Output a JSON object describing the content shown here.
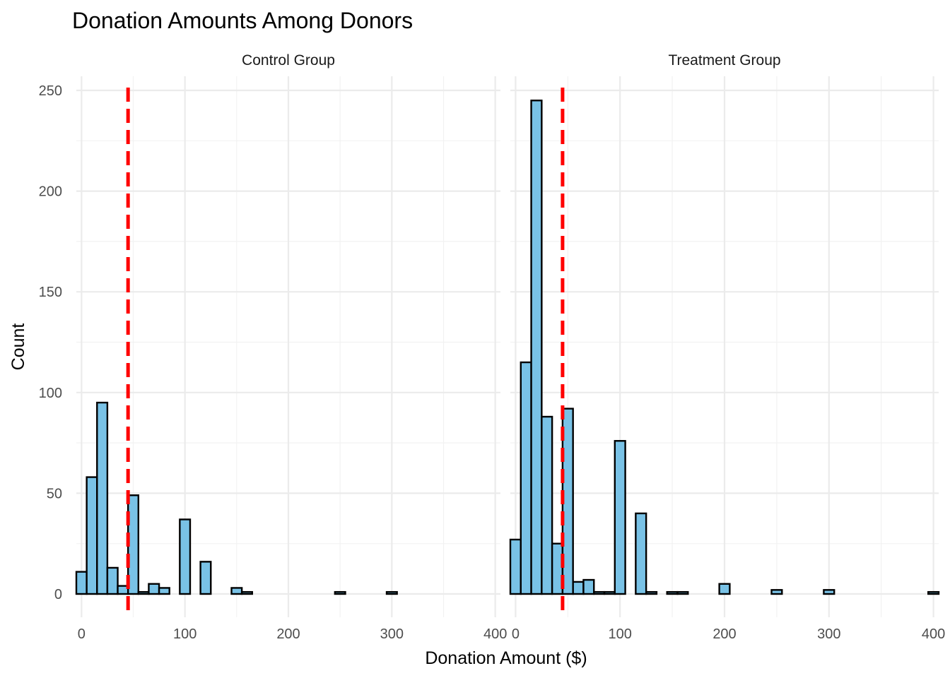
{
  "chart_data": {
    "type": "bar",
    "subtype": "histogram-faceted",
    "title": "Donation Amounts Among Donors",
    "xlabel": "Donation Amount ($)",
    "ylabel": "Count",
    "xlim": [
      -5,
      405
    ],
    "ylim": [
      0,
      250
    ],
    "x_ticks": [
      0,
      100,
      200,
      300,
      400
    ],
    "x_tick_labels": [
      "0",
      "100",
      "200",
      "300",
      "400"
    ],
    "y_ticks": [
      0,
      50,
      100,
      150,
      200,
      250
    ],
    "y_tick_labels": [
      "0",
      "50",
      "100",
      "150",
      "200",
      "250"
    ],
    "bin_width": 10,
    "bar_fill": "#79C2E6",
    "bar_outline": "#000000",
    "mean_line_color": "#FF0000",
    "grid": true,
    "facets": [
      {
        "label": "Control Group",
        "mean_line_x": 45,
        "bins": [
          {
            "x": 0,
            "count": 11
          },
          {
            "x": 10,
            "count": 58
          },
          {
            "x": 20,
            "count": 95
          },
          {
            "x": 30,
            "count": 13
          },
          {
            "x": 40,
            "count": 4
          },
          {
            "x": 50,
            "count": 49
          },
          {
            "x": 60,
            "count": 1
          },
          {
            "x": 70,
            "count": 5
          },
          {
            "x": 80,
            "count": 3
          },
          {
            "x": 90,
            "count": 0
          },
          {
            "x": 100,
            "count": 37
          },
          {
            "x": 110,
            "count": 0
          },
          {
            "x": 120,
            "count": 16
          },
          {
            "x": 130,
            "count": 0
          },
          {
            "x": 140,
            "count": 0
          },
          {
            "x": 150,
            "count": 3
          },
          {
            "x": 160,
            "count": 1
          },
          {
            "x": 170,
            "count": 0
          },
          {
            "x": 180,
            "count": 0
          },
          {
            "x": 190,
            "count": 0
          },
          {
            "x": 200,
            "count": 0
          },
          {
            "x": 210,
            "count": 0
          },
          {
            "x": 220,
            "count": 0
          },
          {
            "x": 230,
            "count": 0
          },
          {
            "x": 240,
            "count": 0
          },
          {
            "x": 250,
            "count": 1
          },
          {
            "x": 260,
            "count": 0
          },
          {
            "x": 270,
            "count": 0
          },
          {
            "x": 280,
            "count": 0
          },
          {
            "x": 290,
            "count": 0
          },
          {
            "x": 300,
            "count": 1
          },
          {
            "x": 310,
            "count": 0
          },
          {
            "x": 320,
            "count": 0
          },
          {
            "x": 330,
            "count": 0
          },
          {
            "x": 340,
            "count": 0
          },
          {
            "x": 350,
            "count": 0
          },
          {
            "x": 360,
            "count": 0
          },
          {
            "x": 370,
            "count": 0
          },
          {
            "x": 380,
            "count": 0
          },
          {
            "x": 390,
            "count": 0
          },
          {
            "x": 400,
            "count": 0
          }
        ]
      },
      {
        "label": "Treatment Group",
        "mean_line_x": 45,
        "bins": [
          {
            "x": 0,
            "count": 27
          },
          {
            "x": 10,
            "count": 115
          },
          {
            "x": 20,
            "count": 245
          },
          {
            "x": 30,
            "count": 88
          },
          {
            "x": 40,
            "count": 25
          },
          {
            "x": 50,
            "count": 92
          },
          {
            "x": 60,
            "count": 6
          },
          {
            "x": 70,
            "count": 7
          },
          {
            "x": 80,
            "count": 1
          },
          {
            "x": 90,
            "count": 1
          },
          {
            "x": 100,
            "count": 76
          },
          {
            "x": 110,
            "count": 0
          },
          {
            "x": 120,
            "count": 40
          },
          {
            "x": 130,
            "count": 1
          },
          {
            "x": 140,
            "count": 0
          },
          {
            "x": 150,
            "count": 1
          },
          {
            "x": 160,
            "count": 1
          },
          {
            "x": 170,
            "count": 0
          },
          {
            "x": 180,
            "count": 0
          },
          {
            "x": 190,
            "count": 0
          },
          {
            "x": 200,
            "count": 5
          },
          {
            "x": 210,
            "count": 0
          },
          {
            "x": 220,
            "count": 0
          },
          {
            "x": 230,
            "count": 0
          },
          {
            "x": 240,
            "count": 0
          },
          {
            "x": 250,
            "count": 2
          },
          {
            "x": 260,
            "count": 0
          },
          {
            "x": 270,
            "count": 0
          },
          {
            "x": 280,
            "count": 0
          },
          {
            "x": 290,
            "count": 0
          },
          {
            "x": 300,
            "count": 2
          },
          {
            "x": 310,
            "count": 0
          },
          {
            "x": 320,
            "count": 0
          },
          {
            "x": 330,
            "count": 0
          },
          {
            "x": 340,
            "count": 0
          },
          {
            "x": 350,
            "count": 0
          },
          {
            "x": 360,
            "count": 0
          },
          {
            "x": 370,
            "count": 0
          },
          {
            "x": 380,
            "count": 0
          },
          {
            "x": 390,
            "count": 0
          },
          {
            "x": 400,
            "count": 1
          }
        ]
      }
    ]
  }
}
